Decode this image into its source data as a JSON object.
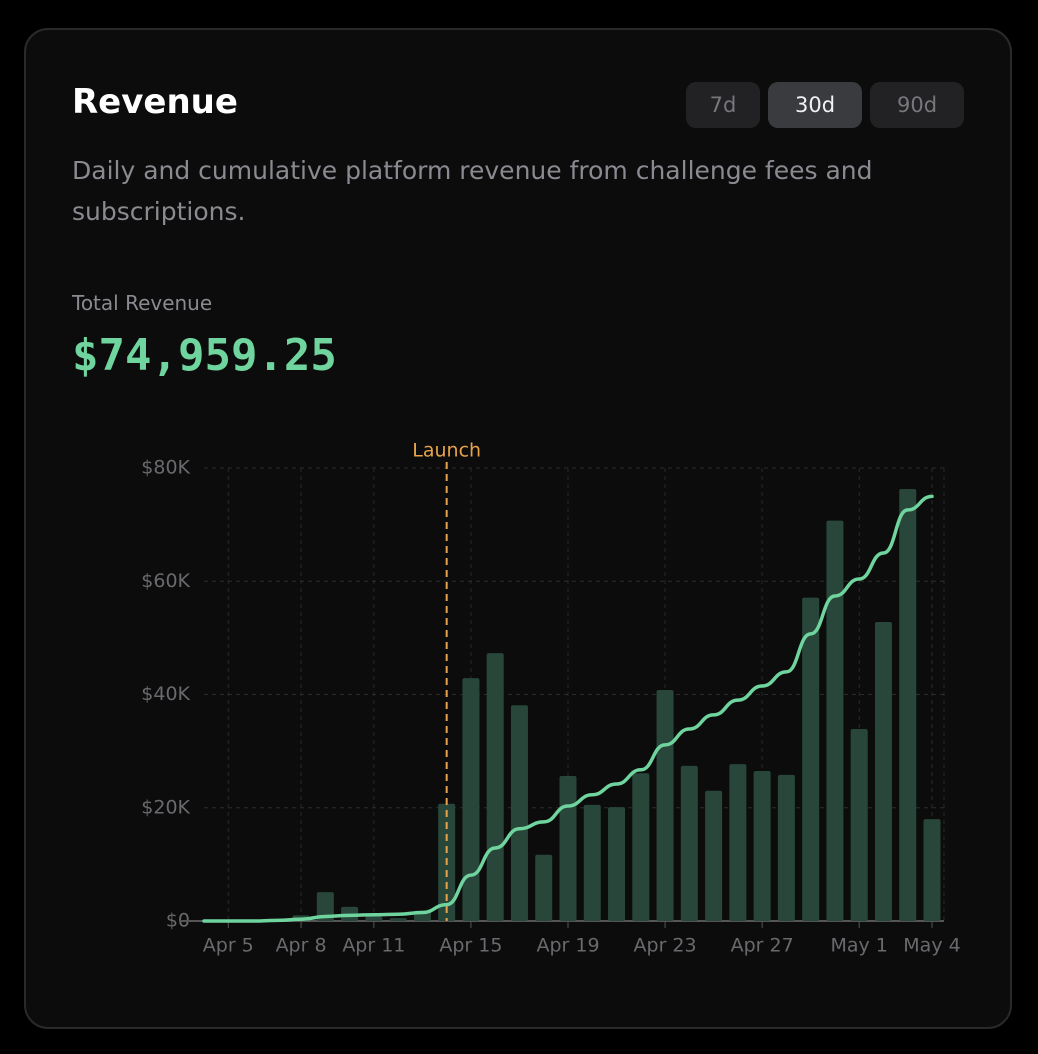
{
  "title": "Revenue",
  "tabs": [
    "7d",
    "30d",
    "90d"
  ],
  "active_tab": "30d",
  "subtitle": "Daily and cumulative platform revenue from challenge fees and subscriptions.",
  "total_label": "Total Revenue",
  "total_value": "$74,959.25",
  "chart_data": {
    "type": "bar-line",
    "categories": [
      null,
      "Apr 5",
      null,
      null,
      "Apr 8",
      null,
      null,
      "Apr 11",
      null,
      null,
      null,
      "Apr 15",
      null,
      null,
      null,
      "Apr 19",
      null,
      null,
      null,
      "Apr 23",
      null,
      null,
      null,
      "Apr 27",
      null,
      null,
      null,
      "May 1",
      null,
      null,
      "May 4"
    ],
    "series": [
      {
        "name": "Daily",
        "type": "bar",
        "axis": "y2",
        "color": "#28473a",
        "values": [
          0,
          0,
          0,
          20,
          100,
          510,
          250,
          80,
          50,
          180,
          2070,
          4290,
          4730,
          3810,
          1170,
          2560,
          2050,
          2010,
          2610,
          4080,
          2740,
          2300,
          2770,
          2650,
          2580,
          5710,
          7070,
          3390,
          5280,
          7630,
          1800
        ]
      },
      {
        "name": "Cumulative",
        "type": "line",
        "color": "#6fd49e",
        "values": [
          0,
          0,
          0,
          100,
          300,
          800,
          1000,
          1100,
          1200,
          1500,
          2900,
          8100,
          12900,
          16300,
          17500,
          20300,
          22300,
          24200,
          26700,
          31100,
          33900,
          36400,
          39000,
          41500,
          44000,
          50700,
          57400,
          60400,
          65000,
          72600,
          75000
        ]
      }
    ],
    "ylim": [
      0,
      80000
    ],
    "yticks": [
      {
        "value": 0,
        "label": "$0"
      },
      {
        "value": 20000,
        "label": "$20K"
      },
      {
        "value": 40000,
        "label": "$40K"
      },
      {
        "value": 60000,
        "label": "$60K"
      },
      {
        "value": 80000,
        "label": "$80K"
      }
    ],
    "y2lim": [
      0,
      8000
    ],
    "grid": true,
    "annotations": [
      {
        "text": "Launch",
        "x": 10,
        "color": "#e7a24a"
      }
    ]
  }
}
